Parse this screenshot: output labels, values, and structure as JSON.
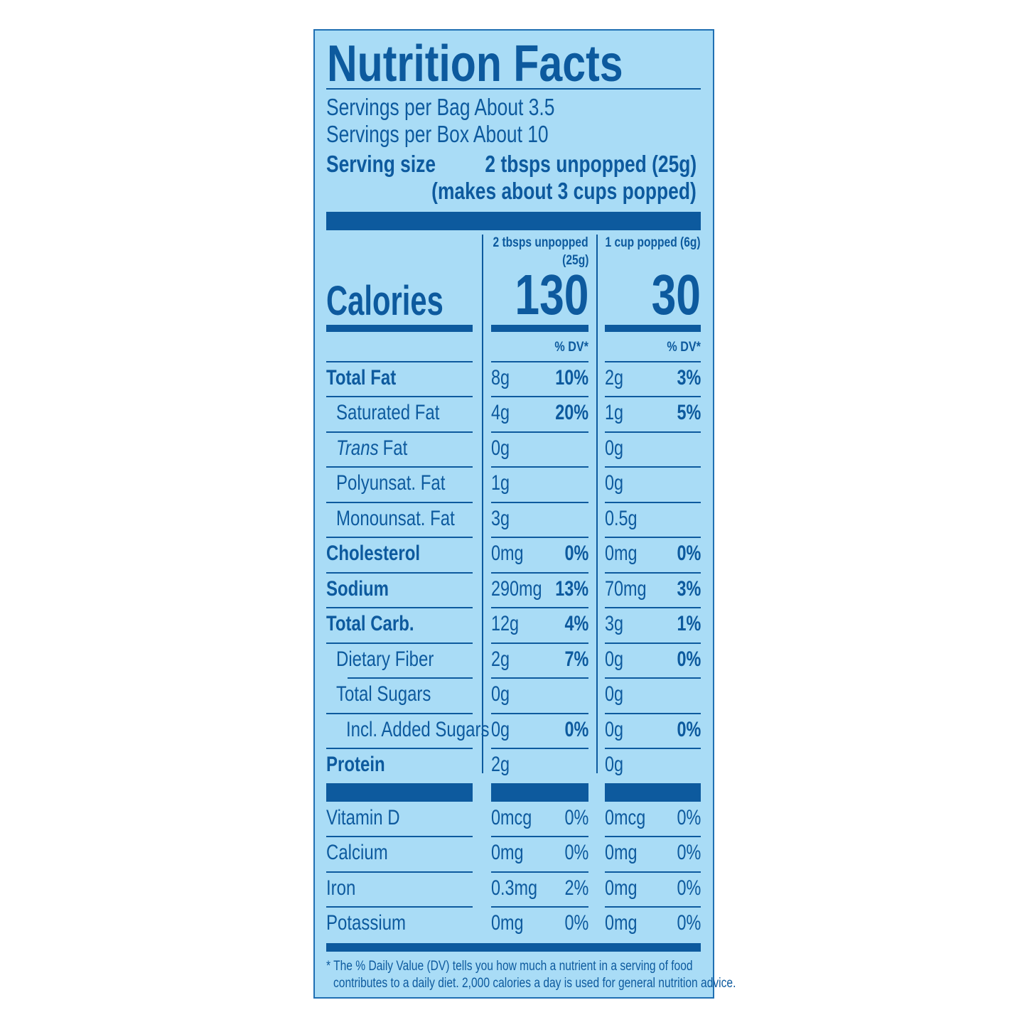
{
  "header": {
    "title": "Nutrition Facts",
    "servings": [
      "Servings per Bag About 3.5",
      "Servings per Box About 10"
    ],
    "serving_size": {
      "label": "Serving size",
      "value": [
        "2 tbsps unpopped (25g)",
        "(makes about 3 cups popped)"
      ]
    }
  },
  "columns": [
    {
      "header": [
        "2 tbsps unpopped",
        "(25g)"
      ],
      "calories": "130",
      "dv_header": "% DV*"
    },
    {
      "header": [
        "1 cup popped (6g)"
      ],
      "calories": "30",
      "dv_header": "% DV*"
    }
  ],
  "calories_label": "Calories",
  "nutrients": [
    {
      "name": "Total Fat",
      "values": [
        [
          "8g",
          "10%"
        ],
        [
          "2g",
          "3%"
        ]
      ]
    },
    {
      "name": "Saturated Fat",
      "values": [
        [
          "4g",
          "20%"
        ],
        [
          "1g",
          "5%"
        ]
      ]
    },
    {
      "name": [
        "Trans",
        "Fat"
      ],
      "values": [
        [
          "0g"
        ],
        [
          "0g"
        ]
      ]
    },
    {
      "name": "Polyunsat. Fat",
      "values": [
        [
          "1g"
        ],
        [
          "0g"
        ]
      ]
    },
    {
      "name": "Monounsat. Fat",
      "values": [
        [
          "3g"
        ],
        [
          "0.5g"
        ]
      ]
    },
    {
      "name": "Cholesterol",
      "values": [
        [
          "0mg",
          "0%"
        ],
        [
          "0mg",
          "0%"
        ]
      ]
    },
    {
      "name": "Sodium",
      "values": [
        [
          "290mg",
          "13%"
        ],
        [
          "70mg",
          "3%"
        ]
      ]
    },
    {
      "name": "Total Carb.",
      "values": [
        [
          "12g",
          "4%"
        ],
        [
          "3g",
          "1%"
        ]
      ]
    },
    {
      "name": "Dietary Fiber",
      "values": [
        [
          "2g",
          "7%"
        ],
        [
          "0g",
          "0%"
        ]
      ]
    },
    {
      "name": "Total Sugars",
      "values": [
        [
          "0g"
        ],
        [
          "0g"
        ]
      ]
    },
    {
      "name": "Incl. Added Sugars",
      "values": [
        [
          "0g",
          "0%"
        ],
        [
          "0g",
          "0%"
        ]
      ]
    },
    {
      "name": "Protein",
      "values": [
        [
          "2g"
        ],
        [
          "0g"
        ]
      ]
    }
  ],
  "vitamins": [
    {
      "name": "Vitamin D",
      "values": [
        [
          "0mcg",
          "0%"
        ],
        [
          "0mcg",
          "0%"
        ]
      ]
    },
    {
      "name": "Calcium",
      "values": [
        [
          "0mg",
          "0%"
        ],
        [
          "0mg",
          "0%"
        ]
      ]
    },
    {
      "name": "Iron",
      "values": [
        [
          "0.3mg",
          "2%"
        ],
        [
          "0mg",
          "0%"
        ]
      ]
    },
    {
      "name": "Potassium",
      "values": [
        [
          "0mg",
          "0%"
        ],
        [
          "0mg",
          "0%"
        ]
      ]
    }
  ],
  "footnote": [
    "* The % Daily Value (DV) tells you how much a nutrient in a serving of food",
    "contributes to a daily diet. 2,000 calories a day is used for general nutrition advice."
  ]
}
